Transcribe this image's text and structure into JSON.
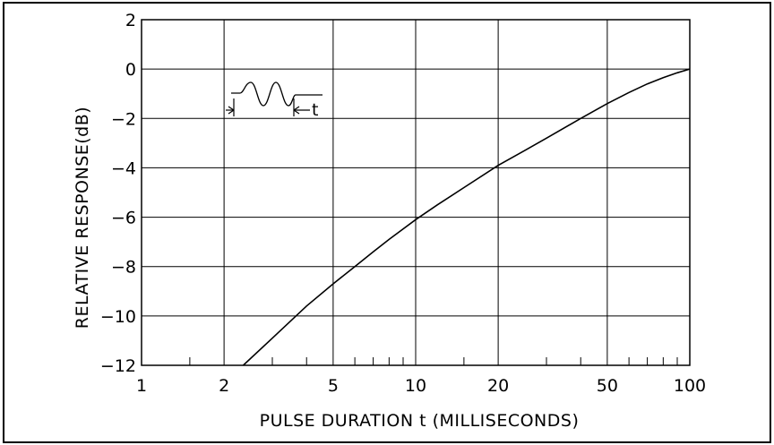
{
  "chart_data": {
    "type": "line",
    "title": "",
    "xlabel": "PULSE DURATION t (MILLISECONDS)",
    "ylabel": "RELATIVE RESPONSE(dB)",
    "x_scale": "log",
    "xlim": [
      1,
      100
    ],
    "ylim": [
      -12,
      2
    ],
    "grid": true,
    "x_major_ticks": [
      1,
      2,
      5,
      10,
      20,
      50,
      100
    ],
    "x_tick_labels": [
      "1",
      "2",
      "5",
      "10",
      "20",
      "50",
      "100"
    ],
    "x_minor_ticks": [
      1.5,
      3,
      4,
      6,
      7,
      8,
      9,
      15,
      30,
      40,
      60,
      70,
      80,
      90
    ],
    "y_ticks": [
      2,
      0,
      -2,
      -4,
      -6,
      -8,
      -10,
      -12
    ],
    "y_tick_labels": [
      "2",
      "0",
      "−2",
      "−4",
      "−6",
      "−8",
      "−10",
      "−12"
    ],
    "inset_annotation": {
      "label": "t",
      "description": "pulse waveform of duration t"
    },
    "series": [
      {
        "x": [
          2.35,
          3,
          3.5,
          4,
          5,
          6,
          7,
          8,
          10,
          12,
          15,
          20,
          25,
          30,
          40,
          50,
          60,
          70,
          80,
          90,
          100
        ],
        "y": [
          -12,
          -10.9,
          -10.2,
          -9.6,
          -8.7,
          -8.0,
          -7.4,
          -6.9,
          -6.1,
          -5.5,
          -4.8,
          -3.9,
          -3.3,
          -2.8,
          -2.0,
          -1.4,
          -0.95,
          -0.6,
          -0.35,
          -0.15,
          0
        ]
      }
    ],
    "colors": {
      "line": "#000000",
      "grid": "#000000",
      "background": "#ffffff"
    }
  }
}
